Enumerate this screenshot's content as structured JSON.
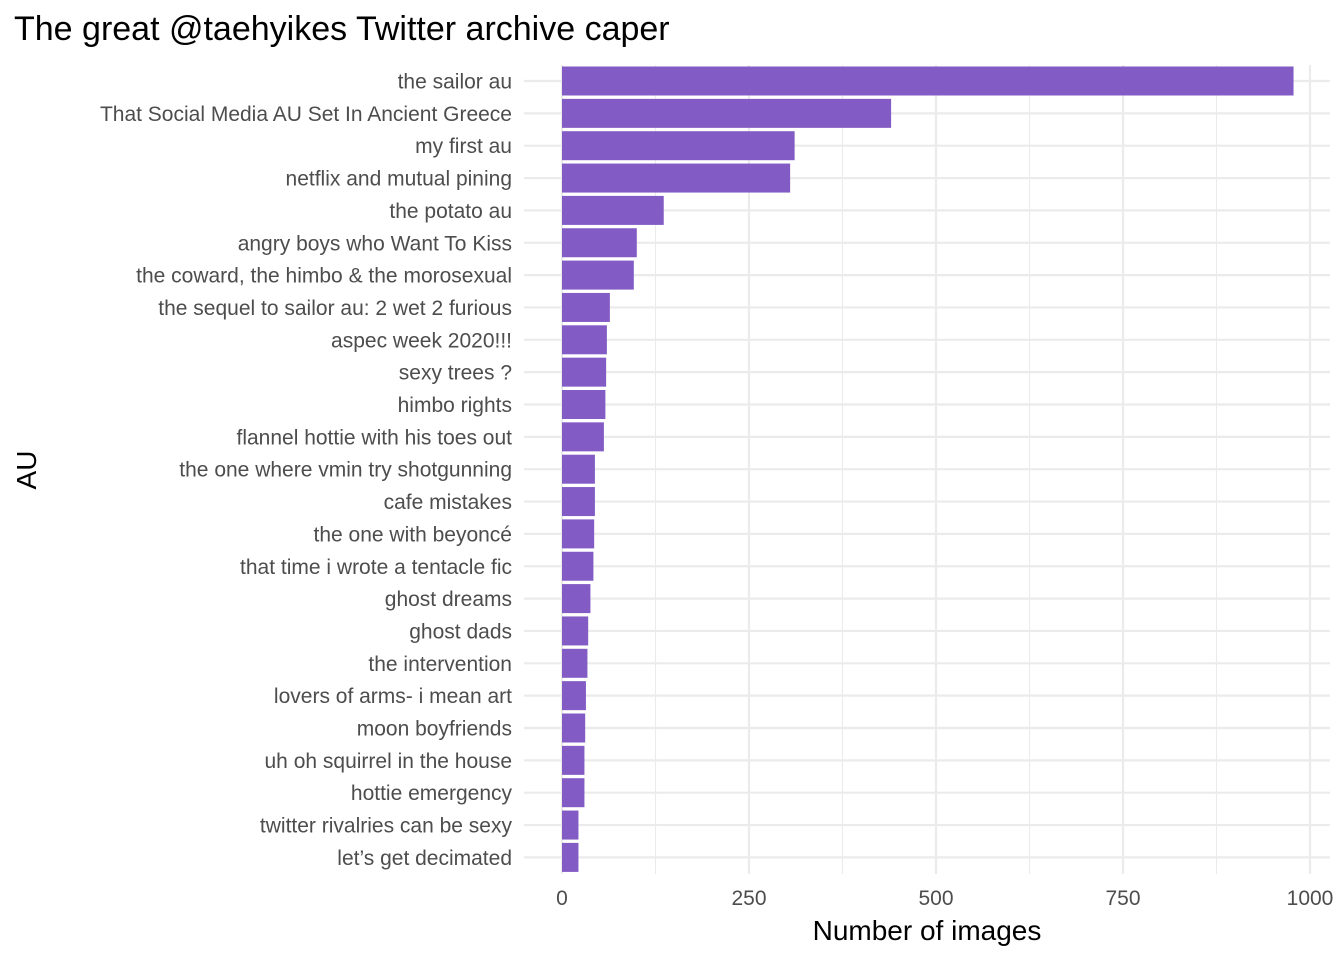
{
  "chart_data": {
    "type": "bar",
    "orientation": "horizontal",
    "title": "The great @taehyikes Twitter archive caper",
    "xlabel": "Number of images",
    "ylabel": "AU",
    "xlim": [
      0,
      1000
    ],
    "xticks": [
      0,
      250,
      500,
      750,
      1000
    ],
    "grid": true,
    "bar_color": "#825bc4",
    "categories": [
      "the sailor au",
      "That Social Media AU Set In Ancient Greece",
      "my first au",
      "netflix and mutual pining",
      "the potato au",
      "angry boys who Want To Kiss",
      "the coward, the himbo & the morosexual",
      "the sequel to sailor au: 2 wet 2 furious",
      "aspec week 2020!!!",
      "sexy trees ?",
      "himbo rights",
      "flannel hottie with his toes out",
      "the one where vmin try shotgunning",
      "cafe mistakes",
      "the one with beyoncé",
      "that time i wrote a tentacle fic",
      "ghost dreams",
      "ghost dads",
      "the intervention",
      "lovers of arms- i mean art",
      "moon boyfriends",
      "uh oh squirrel in the house",
      "hottie emergency",
      "twitter rivalries can be sexy",
      "let’s get decimated"
    ],
    "values": [
      978,
      440,
      311,
      305,
      136,
      100,
      96,
      64,
      60,
      59,
      58,
      56,
      44,
      44,
      43,
      42,
      38,
      35,
      34,
      32,
      31,
      30,
      30,
      22,
      22
    ]
  }
}
